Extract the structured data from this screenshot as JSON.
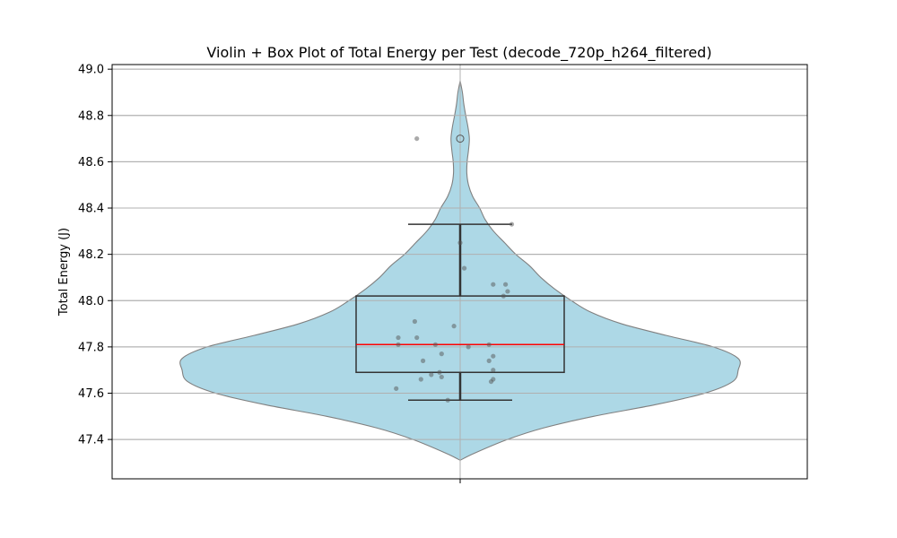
{
  "chart_data": {
    "type": "violin",
    "title": "Violin + Box Plot of Total Energy per Test (decode_720p_h264_filtered)",
    "xlabel": "",
    "ylabel": "Total Energy (J)",
    "ylim": [
      47.23,
      49.02
    ],
    "yticks": [
      47.4,
      47.6,
      47.8,
      48.0,
      48.2,
      48.4,
      48.6,
      48.8,
      49.0
    ],
    "ytick_labels": [
      "47.4",
      "47.6",
      "47.8",
      "48.0",
      "48.2",
      "48.4",
      "48.6",
      "48.8",
      "49.0"
    ],
    "grid": true,
    "colors": {
      "violin_fill": "#add8e6",
      "violin_edge": "#808080",
      "box_edge": "#333333",
      "median_line": "#ff0000",
      "points": "#555555"
    },
    "violin_profile": [
      {
        "y": 47.31,
        "w": 0.0
      },
      {
        "y": 47.34,
        "w": 0.05
      },
      {
        "y": 47.4,
        "w": 0.17
      },
      {
        "y": 47.45,
        "w": 0.3
      },
      {
        "y": 47.5,
        "w": 0.48
      },
      {
        "y": 47.55,
        "w": 0.7
      },
      {
        "y": 47.6,
        "w": 0.88
      },
      {
        "y": 47.65,
        "w": 0.98
      },
      {
        "y": 47.7,
        "w": 1.0
      },
      {
        "y": 47.75,
        "w": 1.0
      },
      {
        "y": 47.8,
        "w": 0.91
      },
      {
        "y": 47.85,
        "w": 0.74
      },
      {
        "y": 47.9,
        "w": 0.58
      },
      {
        "y": 47.95,
        "w": 0.47
      },
      {
        "y": 48.0,
        "w": 0.4
      },
      {
        "y": 48.05,
        "w": 0.34
      },
      {
        "y": 48.1,
        "w": 0.29
      },
      {
        "y": 48.15,
        "w": 0.25
      },
      {
        "y": 48.2,
        "w": 0.2
      },
      {
        "y": 48.25,
        "w": 0.16
      },
      {
        "y": 48.3,
        "w": 0.12
      },
      {
        "y": 48.35,
        "w": 0.09
      },
      {
        "y": 48.4,
        "w": 0.07
      },
      {
        "y": 48.45,
        "w": 0.045
      },
      {
        "y": 48.5,
        "w": 0.03
      },
      {
        "y": 48.55,
        "w": 0.024
      },
      {
        "y": 48.6,
        "w": 0.025
      },
      {
        "y": 48.65,
        "w": 0.03
      },
      {
        "y": 48.7,
        "w": 0.033
      },
      {
        "y": 48.75,
        "w": 0.028
      },
      {
        "y": 48.8,
        "w": 0.02
      },
      {
        "y": 48.85,
        "w": 0.013
      },
      {
        "y": 48.9,
        "w": 0.008
      },
      {
        "y": 48.95,
        "w": 0.0
      }
    ],
    "box": {
      "q1": 47.69,
      "median": 47.81,
      "q3": 48.02,
      "whisker_low": 47.57,
      "whisker_high": 48.33,
      "outliers": [
        48.7
      ]
    },
    "points": [
      {
        "dx": -0.21,
        "y": 48.7
      },
      {
        "dx": 0.25,
        "y": 48.33
      },
      {
        "dx": 0.0,
        "y": 48.25
      },
      {
        "dx": 0.02,
        "y": 48.14
      },
      {
        "dx": 0.16,
        "y": 48.07
      },
      {
        "dx": 0.22,
        "y": 48.07
      },
      {
        "dx": 0.23,
        "y": 48.04
      },
      {
        "dx": 0.21,
        "y": 48.02
      },
      {
        "dx": -0.22,
        "y": 47.91
      },
      {
        "dx": -0.03,
        "y": 47.89
      },
      {
        "dx": -0.3,
        "y": 47.84
      },
      {
        "dx": -0.21,
        "y": 47.84
      },
      {
        "dx": -0.12,
        "y": 47.81
      },
      {
        "dx": -0.3,
        "y": 47.81
      },
      {
        "dx": 0.14,
        "y": 47.81
      },
      {
        "dx": 0.04,
        "y": 47.8
      },
      {
        "dx": -0.09,
        "y": 47.77
      },
      {
        "dx": 0.16,
        "y": 47.76
      },
      {
        "dx": 0.14,
        "y": 47.74
      },
      {
        "dx": -0.18,
        "y": 47.74
      },
      {
        "dx": 0.16,
        "y": 47.7
      },
      {
        "dx": -0.14,
        "y": 47.68
      },
      {
        "dx": -0.1,
        "y": 47.69
      },
      {
        "dx": -0.09,
        "y": 47.67
      },
      {
        "dx": -0.19,
        "y": 47.66
      },
      {
        "dx": 0.16,
        "y": 47.66
      },
      {
        "dx": 0.15,
        "y": 47.65
      },
      {
        "dx": -0.31,
        "y": 47.62
      },
      {
        "dx": -0.06,
        "y": 47.57
      }
    ]
  }
}
